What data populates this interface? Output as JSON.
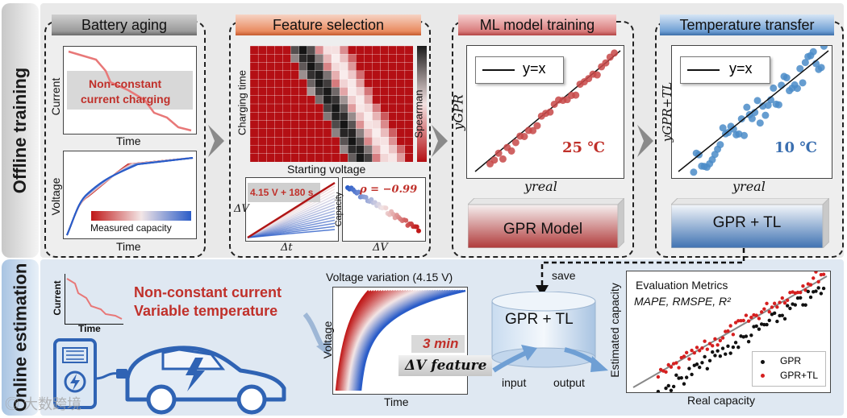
{
  "sidebar": {
    "offline": "Offline training",
    "online": "Online estimation"
  },
  "panels": {
    "aging": {
      "title": "Battery aging",
      "current_axis": "Current",
      "time_axis_1": "Time",
      "callout_line1": "Non-constant",
      "callout_line2": "current charging",
      "voltage_axis": "Voltage",
      "time_axis_2": "Time",
      "colorbar_label": "Measured capacity"
    },
    "feature": {
      "title": "Feature selection",
      "charging_time_axis": "Charging time",
      "starting_voltage_axis": "Starting voltage",
      "spearman_label": "Spearman",
      "small_left_label": "4.15 V + 180 s",
      "dv_axis": "ΔV",
      "dt_axis": "Δt",
      "rho_label": "ρ = −0.99",
      "capacity_axis": "Capacity",
      "dv_axis_2": "ΔV"
    },
    "ml": {
      "title": "ML model training",
      "legend": "y=x",
      "y_axis": "yGPR",
      "x_axis": "yreal",
      "temp": "25 ℃",
      "model_label": "GPR Model"
    },
    "transfer": {
      "title": "Temperature transfer",
      "legend": "y=x",
      "y_axis": "yGPR+TL",
      "x_axis": "yreal",
      "temp": "10 ℃",
      "model_label": "GPR + TL"
    }
  },
  "online": {
    "current_axis": "Current",
    "time_axis": "Time",
    "cond_line1": "Non-constant current",
    "cond_line2": "Variable temperature",
    "vv_title": "Voltage variation (4.15 V)",
    "vv_y": "Voltage",
    "vv_x": "Time",
    "three_min": "3 min",
    "dv_feature": "ΔV feature",
    "save": "save",
    "model_label": "GPR + TL",
    "input": "input",
    "output": "output",
    "eval_title": "Evaluation Metrics",
    "eval_metrics": "MAPE, RMSPE, R²",
    "est_y": "Estimated capacity",
    "real_x": "Real capacity",
    "legend_gpr": "GPR",
    "legend_gprtl": "GPR+TL"
  },
  "watermark": "大数跨境",
  "colors": {
    "accent_red": "#c0302a",
    "accent_blue": "#3b6fb0",
    "offline_bg": "#e8e8e8",
    "online_bg": "#dde7f2"
  }
}
